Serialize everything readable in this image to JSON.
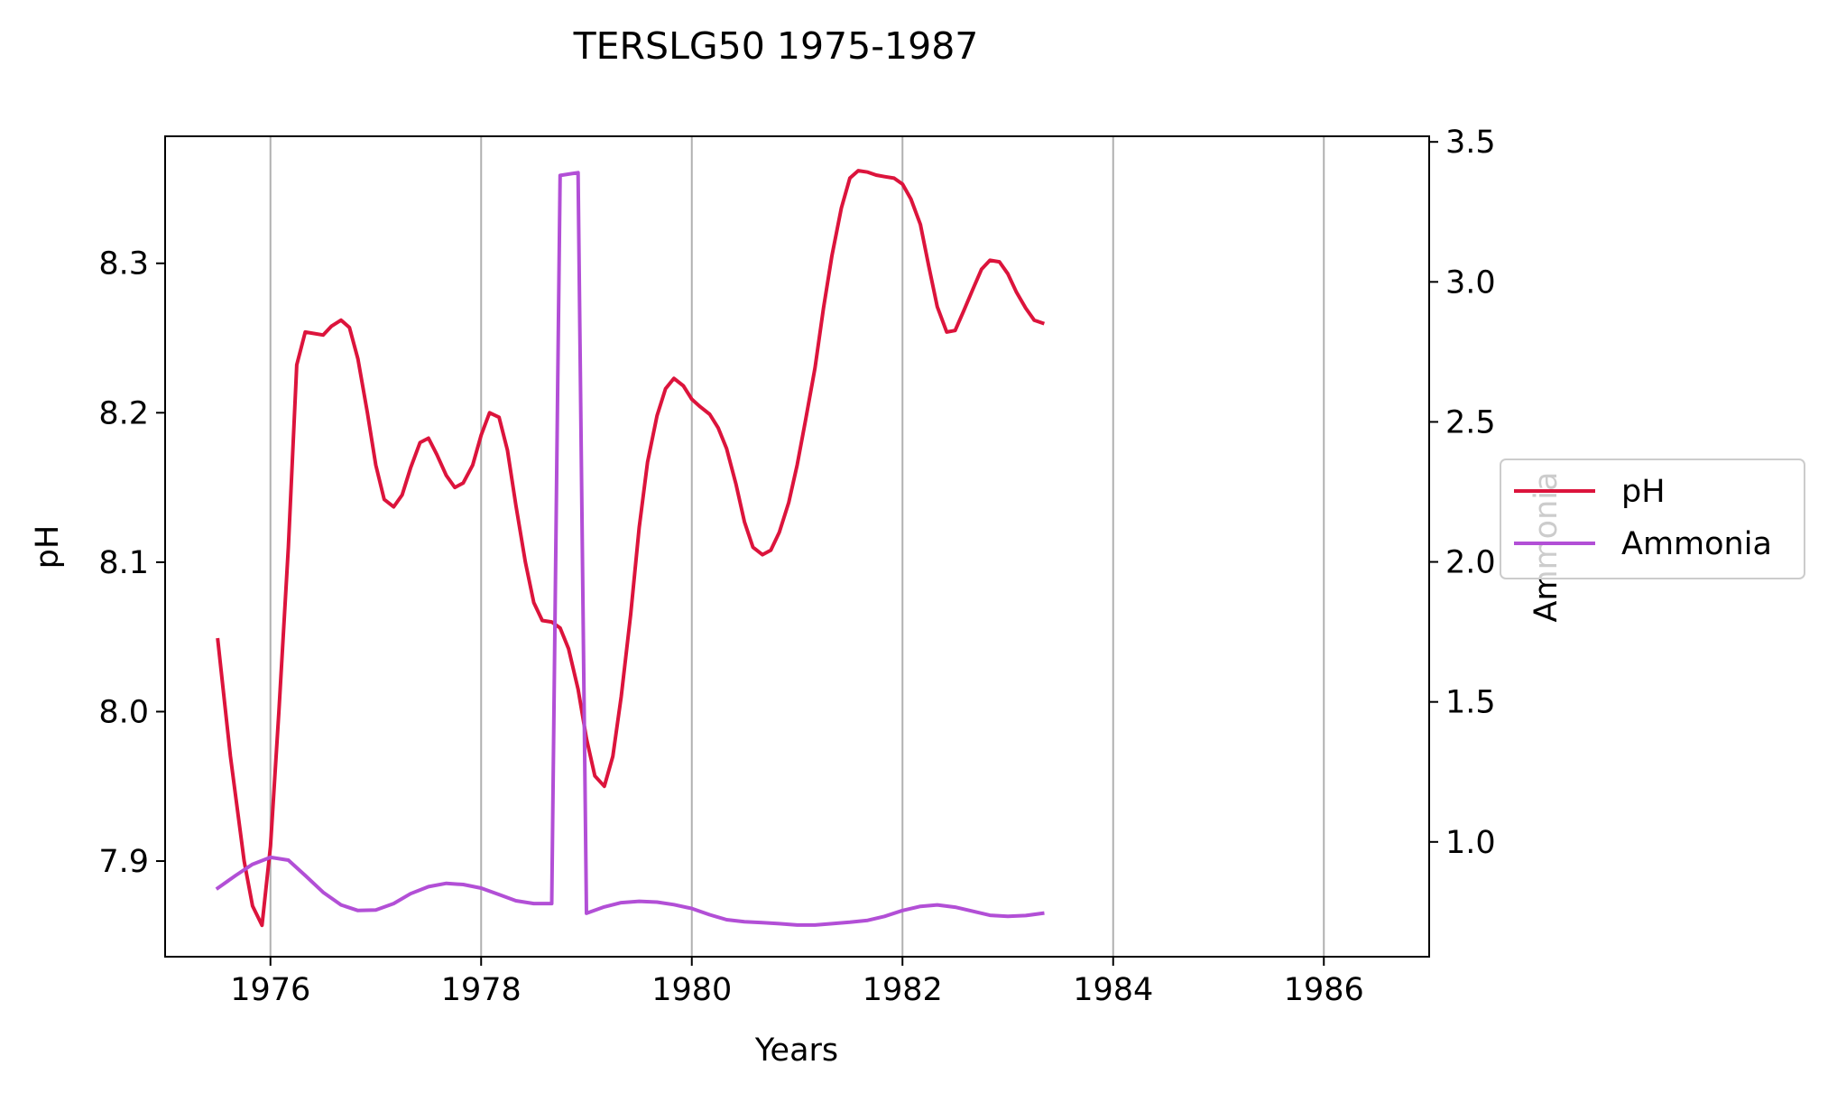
{
  "chart_data": {
    "type": "line",
    "title": "TERSLG50 1975-1987",
    "xlabel": "Years",
    "ylabel": "pH",
    "ylabel_right": "Ammonia",
    "xlim": [
      1975.0,
      1987.0
    ],
    "ylim": [
      7.836,
      8.385
    ],
    "ylim_right": [
      0.59,
      3.52
    ],
    "x_ticks": [
      "1976",
      "1978",
      "1980",
      "1982",
      "1984",
      "1986"
    ],
    "y_ticks": [
      "7.9",
      "8.0",
      "8.1",
      "8.2",
      "8.3"
    ],
    "y_ticks_right": [
      "1.0",
      "1.5",
      "2.0",
      "2.5",
      "3.0",
      "3.5"
    ],
    "grid": "x",
    "legend": {
      "placement": "right, outside",
      "entries": [
        "pH",
        "Ammonia"
      ]
    },
    "series": [
      {
        "name": "pH",
        "axis": "left",
        "color": "#dc143c",
        "x": [
          1975.5,
          1975.62,
          1975.75,
          1975.83,
          1975.92,
          1976.0,
          1976.08,
          1976.17,
          1976.25,
          1976.33,
          1976.5,
          1976.58,
          1976.67,
          1976.75,
          1976.83,
          1976.92,
          1977.0,
          1977.08,
          1977.17,
          1977.25,
          1977.33,
          1977.42,
          1977.5,
          1977.58,
          1977.67,
          1977.75,
          1977.83,
          1977.92,
          1978.0,
          1978.08,
          1978.17,
          1978.25,
          1978.33,
          1978.42,
          1978.5,
          1978.58,
          1978.67,
          1978.75,
          1978.83,
          1978.92,
          1979.0,
          1979.08,
          1979.17,
          1979.25,
          1979.33,
          1979.42,
          1979.5,
          1979.58,
          1979.67,
          1979.75,
          1979.83,
          1979.92,
          1980.0,
          1980.08,
          1980.17,
          1980.25,
          1980.33,
          1980.42,
          1980.5,
          1980.58,
          1980.67,
          1980.75,
          1980.83,
          1980.92,
          1981.0,
          1981.08,
          1981.17,
          1981.25,
          1981.33,
          1981.42,
          1981.5,
          1981.58,
          1981.67,
          1981.75,
          1981.83,
          1981.92,
          1982.0,
          1982.08,
          1982.17,
          1982.25,
          1982.33,
          1982.42,
          1982.5,
          1982.58,
          1982.67,
          1982.75,
          1982.83,
          1982.92,
          1983.0,
          1983.08,
          1983.17,
          1983.25,
          1983.33
        ],
        "y": [
          8.048,
          7.97,
          7.9,
          7.87,
          7.857,
          7.91,
          8.0,
          8.11,
          8.232,
          8.254,
          8.252,
          8.258,
          8.262,
          8.257,
          8.236,
          8.2,
          8.165,
          8.142,
          8.137,
          8.145,
          8.163,
          8.18,
          8.183,
          8.172,
          8.158,
          8.15,
          8.153,
          8.165,
          8.185,
          8.2,
          8.197,
          8.175,
          8.138,
          8.1,
          8.073,
          8.061,
          8.06,
          8.056,
          8.042,
          8.015,
          7.982,
          7.957,
          7.95,
          7.97,
          8.01,
          8.065,
          8.123,
          8.167,
          8.198,
          8.216,
          8.223,
          8.218,
          8.209,
          8.204,
          8.199,
          8.19,
          8.176,
          8.152,
          8.127,
          8.11,
          8.105,
          8.108,
          8.12,
          8.14,
          8.165,
          8.195,
          8.23,
          8.27,
          8.305,
          8.337,
          8.357,
          8.362,
          8.361,
          8.359,
          8.358,
          8.357,
          8.353,
          8.343,
          8.326,
          8.298,
          8.271,
          8.254,
          8.255,
          8.268,
          8.283,
          8.296,
          8.302,
          8.301,
          8.293,
          8.281,
          8.27,
          8.262,
          8.26
        ]
      },
      {
        "name": "Ammonia",
        "axis": "right",
        "color": "#b24fd6",
        "x": [
          1975.5,
          1975.67,
          1975.83,
          1976.0,
          1976.17,
          1976.33,
          1976.5,
          1976.67,
          1976.83,
          1977.0,
          1977.17,
          1977.33,
          1977.5,
          1977.67,
          1977.83,
          1978.0,
          1978.17,
          1978.33,
          1978.5,
          1978.67,
          1978.75,
          1978.92,
          1979.0,
          1979.17,
          1979.33,
          1979.5,
          1979.67,
          1979.83,
          1980.0,
          1980.17,
          1980.33,
          1980.5,
          1980.67,
          1980.83,
          1981.0,
          1981.17,
          1981.33,
          1981.5,
          1981.67,
          1981.83,
          1982.0,
          1982.17,
          1982.33,
          1982.5,
          1982.67,
          1982.83,
          1983.0,
          1983.17,
          1983.33
        ],
        "y": [
          0.835,
          0.88,
          0.92,
          0.945,
          0.935,
          0.88,
          0.82,
          0.775,
          0.755,
          0.757,
          0.78,
          0.815,
          0.84,
          0.852,
          0.848,
          0.835,
          0.812,
          0.79,
          0.78,
          0.78,
          3.38,
          3.39,
          0.745,
          0.768,
          0.783,
          0.788,
          0.785,
          0.776,
          0.762,
          0.74,
          0.722,
          0.715,
          0.712,
          0.708,
          0.703,
          0.703,
          0.708,
          0.713,
          0.72,
          0.734,
          0.755,
          0.77,
          0.775,
          0.767,
          0.752,
          0.738,
          0.734,
          0.737,
          0.745
        ]
      }
    ]
  }
}
